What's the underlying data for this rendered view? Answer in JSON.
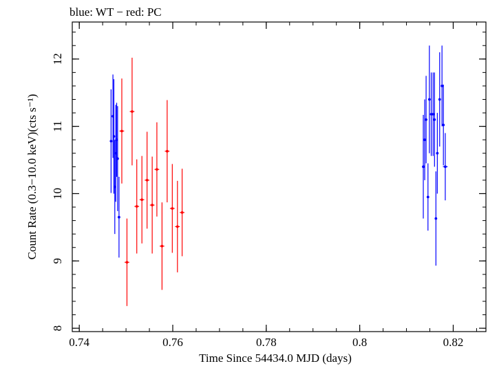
{
  "chart_data": {
    "type": "scatter",
    "title": "blue: WT − red: PC",
    "xlabel": "Time Since 54434.0 MJD (days)",
    "ylabel": "Count Rate (0.3−10.0 keV)(cts s⁻¹)",
    "xlim": [
      0.7385,
      0.827
    ],
    "ylim": [
      7.95,
      12.55
    ],
    "x_major_ticks": [
      0.74,
      0.76,
      0.78,
      0.8,
      0.82
    ],
    "x_tick_labels": [
      "0.74",
      "0.76",
      "0.78",
      "0.8",
      "0.82"
    ],
    "y_major_ticks": [
      8,
      9,
      10,
      11,
      12
    ],
    "y_tick_labels": [
      "8",
      "9",
      "10",
      "11",
      "12"
    ],
    "grid": false,
    "series": [
      {
        "color": "#0000ff",
        "x": [
          0.7468,
          0.7472,
          0.7474,
          0.7476,
          0.7478,
          0.748,
          0.7482,
          0.7485,
          0.8136,
          0.8139,
          0.8142,
          0.8146,
          0.8149,
          0.8153,
          0.8157,
          0.816,
          0.8163,
          0.8166,
          0.8171,
          0.8176,
          0.8179,
          0.8183
        ],
        "y": [
          10.78,
          11.15,
          10.85,
          10.1,
          10.6,
          10.8,
          10.52,
          9.65,
          10.4,
          10.8,
          11.1,
          9.95,
          11.4,
          11.18,
          11.18,
          11.1,
          9.63,
          10.6,
          11.4,
          11.6,
          11.02,
          10.4
        ],
        "yerr": [
          0.77,
          0.62,
          0.85,
          0.7,
          0.72,
          0.55,
          0.78,
          0.6,
          0.77,
          0.6,
          0.65,
          0.5,
          0.8,
          0.62,
          0.62,
          0.7,
          0.7,
          0.6,
          0.7,
          0.6,
          0.6,
          0.5
        ],
        "xerr": [
          0.00015,
          0.00015,
          0.00015,
          0.00015,
          0.00015,
          0.00015,
          0.00015,
          0.00015,
          0.0002,
          0.0002,
          0.0002,
          0.0002,
          0.0002,
          0.0002,
          0.0002,
          0.0002,
          0.0002,
          0.0002,
          0.0002,
          0.0002,
          0.0002,
          0.0005
        ]
      },
      {
        "color": "#ff0000",
        "x": [
          0.7491,
          0.7502,
          0.7513,
          0.7523,
          0.7534,
          0.7545,
          0.7556,
          0.7566,
          0.7577,
          0.7588,
          0.7599,
          0.761,
          0.762
        ],
        "y": [
          10.93,
          8.98,
          11.22,
          9.81,
          9.91,
          10.2,
          9.83,
          10.36,
          9.22,
          10.63,
          9.78,
          9.51,
          9.72
        ],
        "yerr": [
          0.78,
          0.65,
          0.8,
          0.7,
          0.65,
          0.72,
          0.72,
          0.7,
          0.65,
          0.76,
          0.66,
          0.68,
          0.65
        ],
        "xerr": [
          0.0005,
          0.0005,
          0.0005,
          0.0005,
          0.0005,
          0.0005,
          0.0005,
          0.0005,
          0.0005,
          0.0005,
          0.0005,
          0.0005,
          0.0005
        ]
      }
    ]
  }
}
